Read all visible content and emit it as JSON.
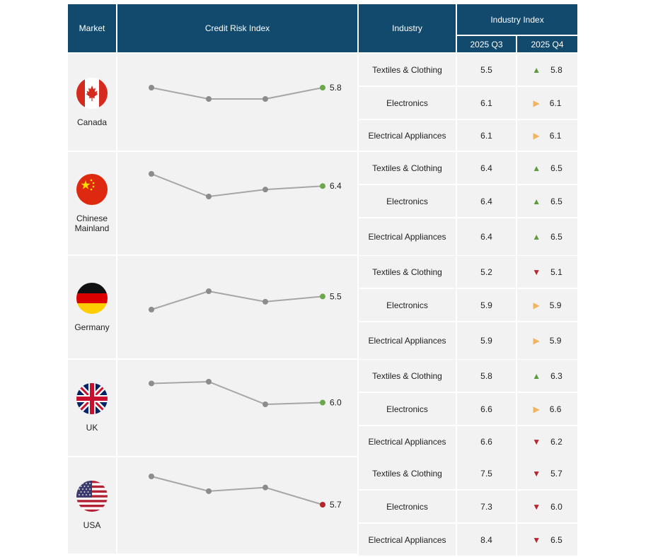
{
  "header": {
    "market": "Market",
    "credit_risk_index": "Credit Risk Index",
    "industry": "Industry",
    "industry_index": "Industry Index",
    "q3": "2025 Q3",
    "q4": "2025 Q4"
  },
  "colors": {
    "header_bg": "#124a6e",
    "up": "#5e9b3d",
    "flat": "#f0b560",
    "down": "#b3262c",
    "line": "#a6a6a6",
    "point": "#8c8c8c",
    "last_up": "#6ca84a",
    "last_down": "#b3262c"
  },
  "markets": [
    {
      "name": "Canada",
      "flag_icon": "canada-flag-icon"
    },
    {
      "name": "Chinese\nMainland",
      "flag_icon": "china-flag-icon"
    },
    {
      "name": "Germany",
      "flag_icon": "germany-flag-icon"
    },
    {
      "name": "UK",
      "flag_icon": "uk-flag-icon"
    },
    {
      "name": "USA",
      "flag_icon": "usa-flag-icon"
    }
  ],
  "chart_data": {
    "type": "table",
    "columns": [
      "Market",
      "Credit Risk Index",
      "Industry",
      "2025 Q3",
      "2025 Q4"
    ],
    "sparklines": [
      {
        "market": "Canada",
        "values": [
          5.8,
          5.77,
          5.77,
          5.8
        ],
        "last_label": "5.8",
        "last_trend": "up"
      },
      {
        "market": "Chinese Mainland",
        "values": [
          6.5,
          6.37,
          6.41,
          6.43
        ],
        "last_label": "6.4",
        "last_trend": "up"
      },
      {
        "market": "Germany",
        "values": [
          5.44,
          5.51,
          5.47,
          5.49
        ],
        "last_label": "5.5",
        "last_trend": "up"
      },
      {
        "market": "UK",
        "values": [
          6.12,
          6.13,
          6.0,
          6.01
        ],
        "last_label": "6.0",
        "last_trend": "up"
      },
      {
        "market": "USA",
        "values": [
          5.95,
          5.83,
          5.86,
          5.72
        ],
        "last_label": "5.7",
        "last_trend": "down"
      }
    ],
    "rows": [
      {
        "market": "Canada",
        "industry": "Textiles & Clothing",
        "q3": "5.5",
        "q4": "5.8",
        "trend": "up"
      },
      {
        "market": "Canada",
        "industry": "Electronics",
        "q3": "6.1",
        "q4": "6.1",
        "trend": "flat"
      },
      {
        "market": "Canada",
        "industry": "Electrical Appliances",
        "q3": "6.1",
        "q4": "6.1",
        "trend": "flat"
      },
      {
        "market": "Chinese Mainland",
        "industry": "Textiles & Clothing",
        "q3": "6.4",
        "q4": "6.5",
        "trend": "up"
      },
      {
        "market": "Chinese Mainland",
        "industry": "Electronics",
        "q3": "6.4",
        "q4": "6.5",
        "trend": "up"
      },
      {
        "market": "Chinese Mainland",
        "industry": "Electrical Appliances",
        "q3": "6.4",
        "q4": "6.5",
        "trend": "up"
      },
      {
        "market": "Germany",
        "industry": "Textiles & Clothing",
        "q3": "5.2",
        "q4": "5.1",
        "trend": "down"
      },
      {
        "market": "Germany",
        "industry": "Electronics",
        "q3": "5.9",
        "q4": "5.9",
        "trend": "flat"
      },
      {
        "market": "Germany",
        "industry": "Electrical Appliances",
        "q3": "5.9",
        "q4": "5.9",
        "trend": "flat"
      },
      {
        "market": "UK",
        "industry": "Textiles & Clothing",
        "q3": "5.8",
        "q4": "6.3",
        "trend": "up"
      },
      {
        "market": "UK",
        "industry": "Electronics",
        "q3": "6.6",
        "q4": "6.6",
        "trend": "flat"
      },
      {
        "market": "UK",
        "industry": "Electrical Appliances",
        "q3": "6.6",
        "q4": "6.2",
        "trend": "down"
      },
      {
        "market": "USA",
        "industry": "Textiles & Clothing",
        "q3": "7.5",
        "q4": "5.7",
        "trend": "down"
      },
      {
        "market": "USA",
        "industry": "Electronics",
        "q3": "7.3",
        "q4": "6.0",
        "trend": "down"
      },
      {
        "market": "USA",
        "industry": "Electrical Appliances",
        "q3": "8.4",
        "q4": "6.5",
        "trend": "down"
      }
    ]
  }
}
